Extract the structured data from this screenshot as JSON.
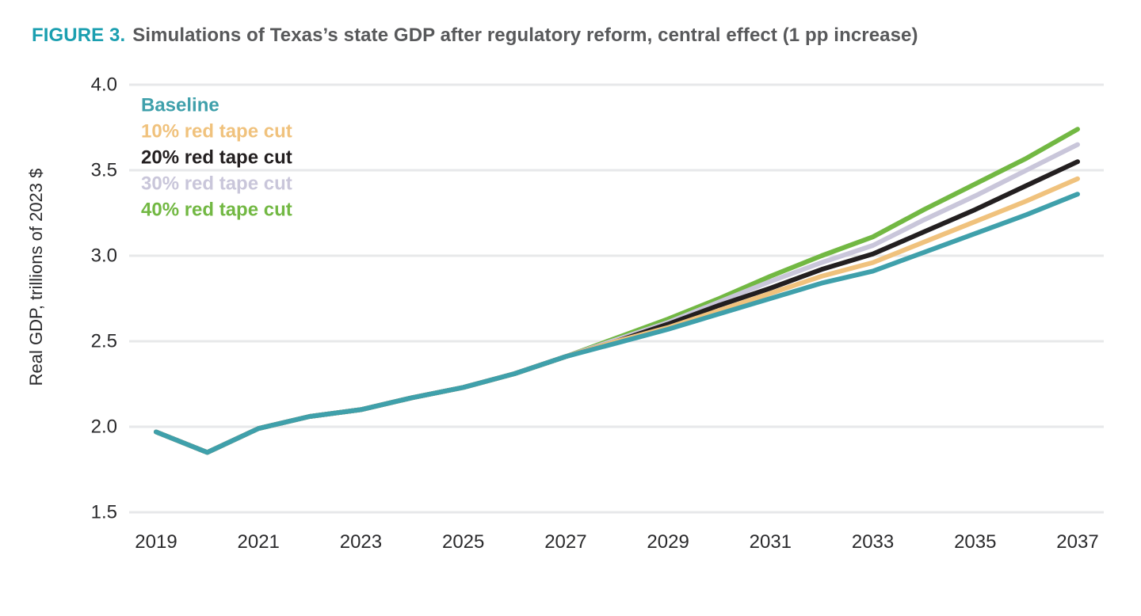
{
  "figure_title": {
    "label": "FIGURE 3.",
    "text": "Simulations of Texas’s state GDP after regulatory reform, central effect (1 pp increase)",
    "label_color": "#1b9fb0",
    "text_color": "#58595b"
  },
  "chart_data": {
    "type": "line",
    "title": "FIGURE 3. Simulations of Texas’s state GDP after regulatory reform, central effect (1 pp increase)",
    "xlabel": "",
    "ylabel": "Real GDP, trillions of 2023 $",
    "x": [
      2019,
      2020,
      2021,
      2022,
      2023,
      2024,
      2025,
      2026,
      2027,
      2028,
      2029,
      2030,
      2031,
      2032,
      2033,
      2034,
      2035,
      2036,
      2037
    ],
    "x_tick_labels": [
      "2019",
      "2021",
      "2023",
      "2025",
      "2027",
      "2029",
      "2031",
      "2033",
      "2035",
      "2037"
    ],
    "y_ticks": [
      1.5,
      2.0,
      2.5,
      3.0,
      3.5,
      4.0
    ],
    "ylim": [
      1.5,
      4.0
    ],
    "xlim": [
      2018.5,
      2037.5
    ],
    "grid": true,
    "legend_position": "top-left",
    "gridline_color": "#e7e8ea",
    "tick_label_color": "#2a2a2c",
    "series": [
      {
        "name": "Baseline",
        "color": "#3fa0ab",
        "values": [
          1.97,
          1.85,
          1.99,
          2.06,
          2.1,
          2.17,
          2.23,
          2.31,
          2.41,
          2.49,
          2.57,
          2.66,
          2.75,
          2.84,
          2.91,
          3.02,
          3.13,
          3.24,
          3.36
        ]
      },
      {
        "name": "10% red tape cut",
        "color": "#f0c27d",
        "values": [
          1.97,
          1.85,
          1.99,
          2.06,
          2.1,
          2.17,
          2.23,
          2.31,
          2.41,
          2.5,
          2.58,
          2.68,
          2.78,
          2.88,
          2.96,
          3.08,
          3.2,
          3.32,
          3.45
        ]
      },
      {
        "name": "20% red tape cut",
        "color": "#231f20",
        "values": [
          1.97,
          1.85,
          1.99,
          2.06,
          2.1,
          2.17,
          2.23,
          2.31,
          2.41,
          2.5,
          2.6,
          2.71,
          2.81,
          2.92,
          3.01,
          3.14,
          3.27,
          3.41,
          3.55
        ]
      },
      {
        "name": "30% red tape cut",
        "color": "#c9c6da",
        "values": [
          1.97,
          1.85,
          1.99,
          2.06,
          2.1,
          2.17,
          2.23,
          2.31,
          2.41,
          2.51,
          2.61,
          2.73,
          2.85,
          2.96,
          3.06,
          3.21,
          3.35,
          3.5,
          3.65
        ]
      },
      {
        "name": "40% red tape cut",
        "color": "#72b843",
        "values": [
          1.97,
          1.85,
          1.99,
          2.06,
          2.1,
          2.17,
          2.23,
          2.31,
          2.41,
          2.52,
          2.63,
          2.75,
          2.88,
          3.0,
          3.11,
          3.27,
          3.42,
          3.57,
          3.74
        ]
      }
    ]
  }
}
